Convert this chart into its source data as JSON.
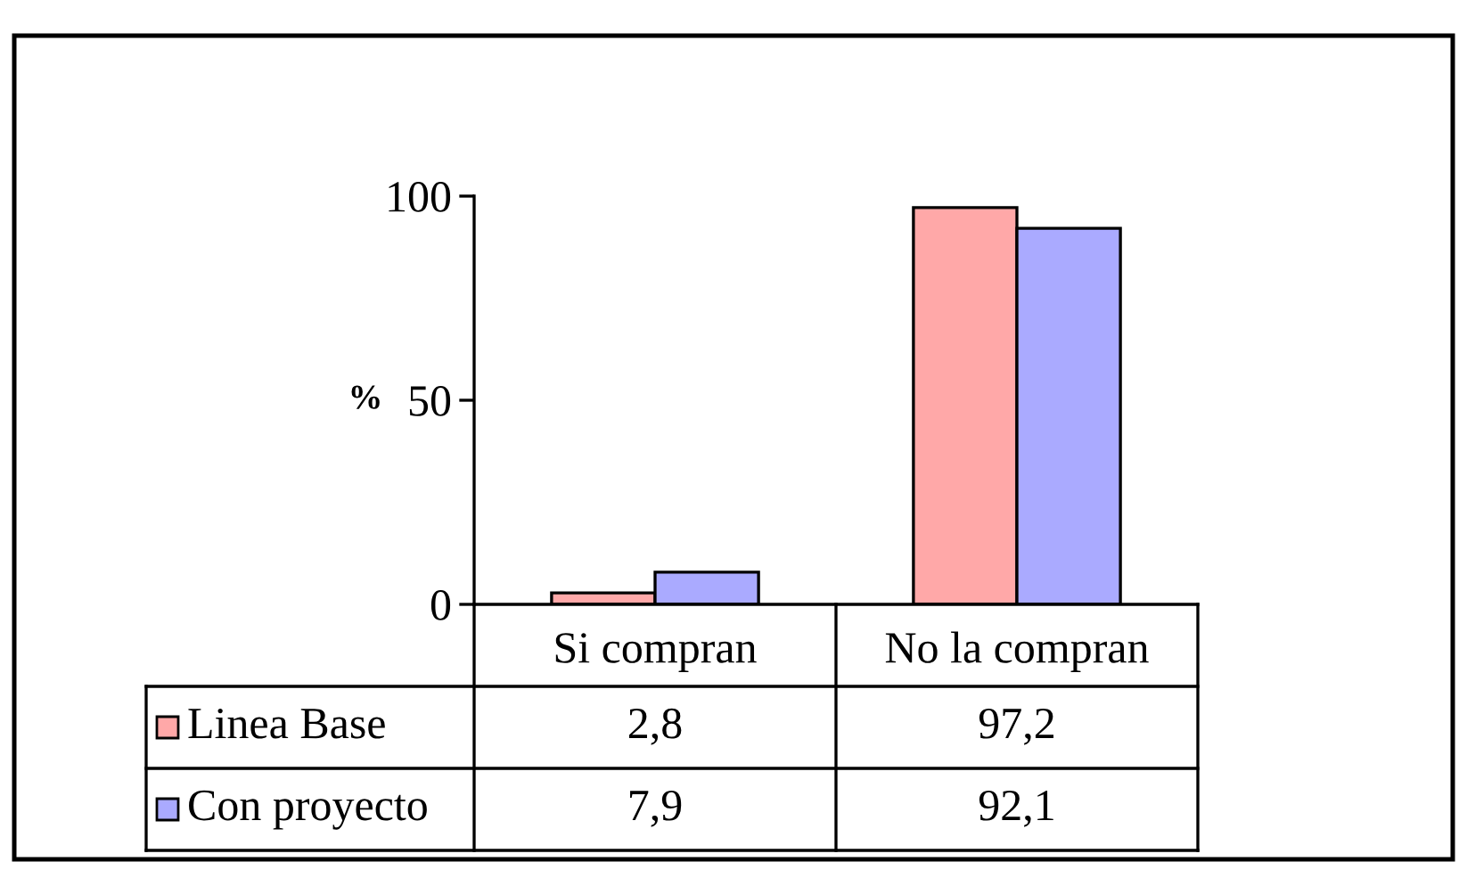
{
  "chart_data": {
    "type": "bar",
    "ylabel": "%",
    "categories": [
      "Si compran",
      "No la compran"
    ],
    "series": [
      {
        "name": "Linea Base",
        "color": "#ffa8a8",
        "values": [
          2.8,
          97.2
        ],
        "value_labels": [
          "2,8",
          "97,2"
        ]
      },
      {
        "name": "Con proyecto",
        "color": "#aaaaff",
        "values": [
          7.9,
          92.1
        ],
        "value_labels": [
          "7,9",
          "92,1"
        ]
      }
    ],
    "ylim": [
      0,
      100
    ],
    "yticks": [
      0,
      50,
      100
    ],
    "legend": "bottom"
  }
}
